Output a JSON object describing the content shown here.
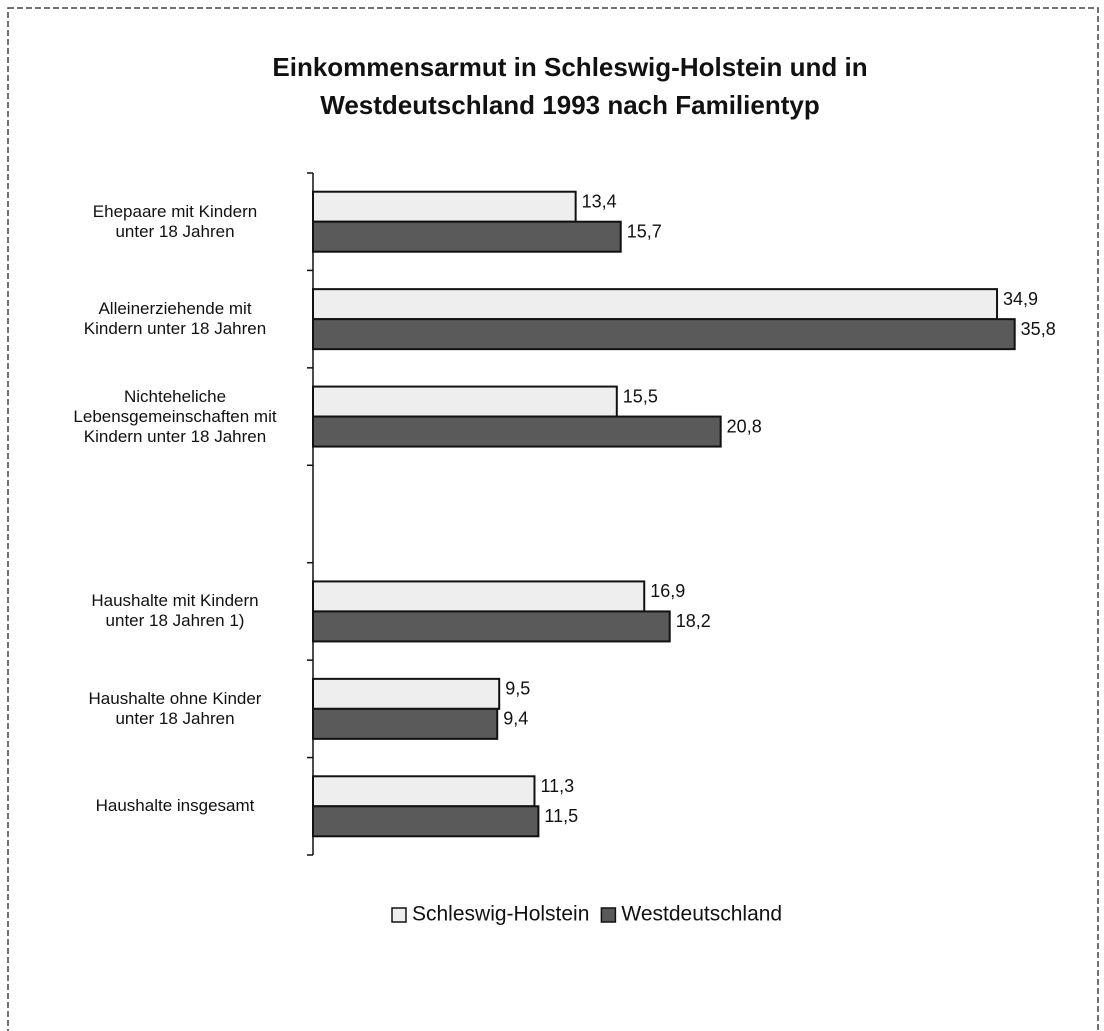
{
  "chart_data": {
    "type": "hbar",
    "title": "Einkommensarmut in Schleswig-Holstein und in\nWestdeutschland 1993 nach Familientyp",
    "categories": [
      "Ehepaare mit Kindern\nunter 18 Jahren",
      "Alleinerziehende mit\nKindern unter 18 Jahren",
      "Nichteheliche\nLebensgemeinschaften mit\nKindern unter 18 Jahren",
      null,
      "Haushalte mit Kindern\nunter 18 Jahren 1)",
      "Haushalte ohne Kinder\nunter 18 Jahren",
      "Haushalte insgesamt"
    ],
    "series": [
      {
        "name": "Schleswig-Holstein",
        "color": "#eeeeee",
        "values": [
          13.4,
          34.9,
          15.5,
          null,
          16.9,
          9.5,
          11.3
        ],
        "value_labels": [
          "13,4",
          "34,9",
          "15,5",
          null,
          "16,9",
          "9,5",
          "11,3"
        ]
      },
      {
        "name": "Westdeutschland",
        "color": "#5a5a5a",
        "values": [
          15.7,
          35.8,
          20.8,
          null,
          18.2,
          9.4,
          11.5
        ],
        "value_labels": [
          "15,7",
          "35,8",
          "20,8",
          null,
          "18,2",
          "9,4",
          "11,5"
        ]
      }
    ],
    "xlim": [
      0,
      40
    ],
    "legend": "bottom"
  }
}
